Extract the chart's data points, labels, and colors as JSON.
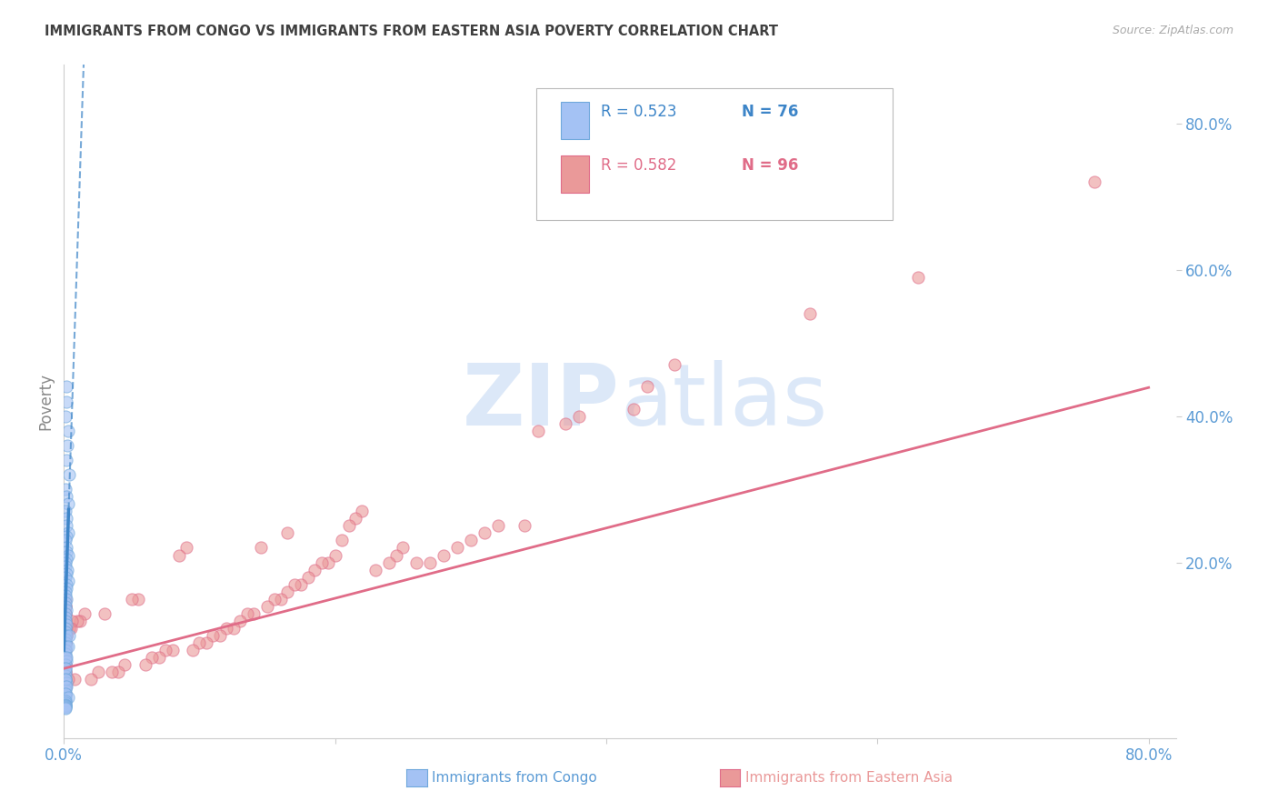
{
  "title": "IMMIGRANTS FROM CONGO VS IMMIGRANTS FROM EASTERN ASIA POVERTY CORRELATION CHART",
  "source": "Source: ZipAtlas.com",
  "ylabel": "Poverty",
  "xlim": [
    0.0,
    0.82
  ],
  "ylim": [
    -0.04,
    0.88
  ],
  "congo_R": 0.523,
  "congo_N": 76,
  "eastern_asia_R": 0.582,
  "eastern_asia_N": 96,
  "congo_color": "#a4c2f4",
  "eastern_asia_color": "#ea9999",
  "congo_scatter_edge": "#6fa8dc",
  "eastern_asia_scatter_edge": "#e06c88",
  "congo_line_color": "#3d85c8",
  "eastern_asia_line_color": "#e06c88",
  "background_color": "#ffffff",
  "watermark_color": "#dce8f8",
  "grid_color": "#cccccc",
  "title_color": "#404040",
  "source_color": "#aaaaaa",
  "axis_tick_color": "#5b9bd5",
  "ylabel_color": "#888888",
  "congo_line_intercept": 0.08,
  "congo_line_slope": 55.0,
  "eastern_asia_line_intercept": 0.055,
  "eastern_asia_line_slope": 0.48,
  "congo_scatter_x": [
    0.0015,
    0.002,
    0.001,
    0.003,
    0.0025,
    0.002,
    0.004,
    0.001,
    0.0015,
    0.003,
    0.001,
    0.0015,
    0.002,
    0.003,
    0.0015,
    0.001,
    0.002,
    0.0015,
    0.003,
    0.002,
    0.001,
    0.001,
    0.0025,
    0.0015,
    0.001,
    0.003,
    0.0015,
    0.002,
    0.001,
    0.001,
    0.002,
    0.001,
    0.001,
    0.002,
    0.001,
    0.001,
    0.001,
    0.002,
    0.001,
    0.001,
    0.002,
    0.001,
    0.001,
    0.002,
    0.001,
    0.001,
    0.001,
    0.002,
    0.001,
    0.001,
    0.001,
    0.001,
    0.001,
    0.002,
    0.001,
    0.001,
    0.001,
    0.001,
    0.001,
    0.001,
    0.0035,
    0.003,
    0.002,
    0.001,
    0.001,
    0.002,
    0.001,
    0.003,
    0.001,
    0.001,
    0.001,
    0.001,
    0.001,
    0.001,
    0.001,
    0.001
  ],
  "congo_scatter_y": [
    0.44,
    0.42,
    0.4,
    0.38,
    0.36,
    0.34,
    0.32,
    0.3,
    0.29,
    0.28,
    0.27,
    0.26,
    0.25,
    0.24,
    0.235,
    0.23,
    0.22,
    0.215,
    0.21,
    0.205,
    0.2,
    0.195,
    0.19,
    0.185,
    0.18,
    0.175,
    0.17,
    0.165,
    0.16,
    0.155,
    0.15,
    0.145,
    0.14,
    0.135,
    0.13,
    0.125,
    0.12,
    0.115,
    0.11,
    0.105,
    0.1,
    0.095,
    0.09,
    0.085,
    0.08,
    0.075,
    0.07,
    0.065,
    0.06,
    0.055,
    0.05,
    0.045,
    0.04,
    0.035,
    0.03,
    0.025,
    0.02,
    0.018,
    0.015,
    0.012,
    0.1,
    0.085,
    0.07,
    0.055,
    0.04,
    0.03,
    0.02,
    0.015,
    0.01,
    0.008,
    0.006,
    0.005,
    0.004,
    0.003,
    0.002,
    0.001
  ],
  "eastern_asia_scatter_x": [
    0.76,
    0.63,
    0.55,
    0.45,
    0.43,
    0.42,
    0.38,
    0.37,
    0.35,
    0.34,
    0.32,
    0.31,
    0.3,
    0.29,
    0.28,
    0.27,
    0.26,
    0.25,
    0.245,
    0.24,
    0.23,
    0.22,
    0.215,
    0.21,
    0.205,
    0.2,
    0.195,
    0.19,
    0.185,
    0.18,
    0.175,
    0.17,
    0.165,
    0.165,
    0.16,
    0.155,
    0.15,
    0.145,
    0.14,
    0.135,
    0.13,
    0.125,
    0.12,
    0.115,
    0.11,
    0.105,
    0.1,
    0.095,
    0.09,
    0.085,
    0.08,
    0.075,
    0.07,
    0.065,
    0.06,
    0.055,
    0.05,
    0.045,
    0.04,
    0.035,
    0.03,
    0.025,
    0.02,
    0.015,
    0.012,
    0.01,
    0.008,
    0.006,
    0.005,
    0.004,
    0.003,
    0.002,
    0.002,
    0.002,
    0.001,
    0.001,
    0.001,
    0.001,
    0.001,
    0.001,
    0.001,
    0.001,
    0.001,
    0.001,
    0.001,
    0.001,
    0.001,
    0.001,
    0.001,
    0.001,
    0.001,
    0.001,
    0.001,
    0.001,
    0.001,
    0.001
  ],
  "eastern_asia_scatter_y": [
    0.72,
    0.59,
    0.54,
    0.47,
    0.44,
    0.41,
    0.4,
    0.39,
    0.38,
    0.25,
    0.25,
    0.24,
    0.23,
    0.22,
    0.21,
    0.2,
    0.2,
    0.22,
    0.21,
    0.2,
    0.19,
    0.27,
    0.26,
    0.25,
    0.23,
    0.21,
    0.2,
    0.2,
    0.19,
    0.18,
    0.17,
    0.17,
    0.24,
    0.16,
    0.15,
    0.15,
    0.14,
    0.22,
    0.13,
    0.13,
    0.12,
    0.11,
    0.11,
    0.1,
    0.1,
    0.09,
    0.09,
    0.08,
    0.22,
    0.21,
    0.08,
    0.08,
    0.07,
    0.07,
    0.06,
    0.15,
    0.15,
    0.06,
    0.05,
    0.05,
    0.13,
    0.05,
    0.04,
    0.13,
    0.12,
    0.12,
    0.04,
    0.12,
    0.11,
    0.11,
    0.04,
    0.11,
    0.1,
    0.1,
    0.03,
    0.1,
    0.09,
    0.09,
    0.09,
    0.03,
    0.15,
    0.14,
    0.13,
    0.12,
    0.11,
    0.09,
    0.08,
    0.07,
    0.06,
    0.05,
    0.04,
    0.03,
    0.02,
    0.14,
    0.13,
    0.05
  ]
}
